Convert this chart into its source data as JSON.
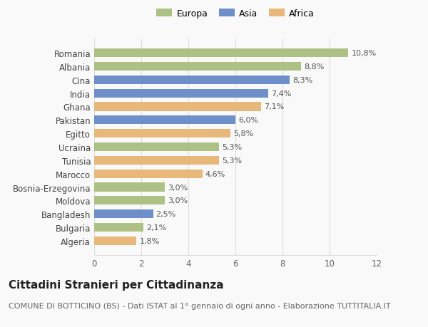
{
  "countries": [
    "Algeria",
    "Bulgaria",
    "Bangladesh",
    "Moldova",
    "Bosnia-Erzegovina",
    "Marocco",
    "Tunisia",
    "Ucraina",
    "Egitto",
    "Pakistan",
    "Ghana",
    "India",
    "Cina",
    "Albania",
    "Romania"
  ],
  "values": [
    1.8,
    2.1,
    2.5,
    3.0,
    3.0,
    4.6,
    5.3,
    5.3,
    5.8,
    6.0,
    7.1,
    7.4,
    8.3,
    8.8,
    10.8
  ],
  "continents": [
    "Africa",
    "Europa",
    "Asia",
    "Europa",
    "Europa",
    "Africa",
    "Africa",
    "Europa",
    "Africa",
    "Asia",
    "Africa",
    "Asia",
    "Asia",
    "Europa",
    "Europa"
  ],
  "labels": [
    "1,8%",
    "2,1%",
    "2,5%",
    "3,0%",
    "3,0%",
    "4,6%",
    "5,3%",
    "5,3%",
    "5,8%",
    "6,0%",
    "7,1%",
    "7,4%",
    "8,3%",
    "8,8%",
    "10,8%"
  ],
  "colors": {
    "Europa": "#aec185",
    "Asia": "#6e8fc9",
    "Africa": "#e8b87a"
  },
  "legend_labels": [
    "Europa",
    "Asia",
    "Africa"
  ],
  "legend_colors": [
    "#aec185",
    "#6e8fc9",
    "#e8b87a"
  ],
  "xlim": [
    0,
    12
  ],
  "xticks": [
    0,
    2,
    4,
    6,
    8,
    10,
    12
  ],
  "title": "Cittadini Stranieri per Cittadinanza",
  "subtitle": "COMUNE DI BOTTICINO (BS) - Dati ISTAT al 1° gennaio di ogni anno - Elaborazione TUTTITALIA.IT",
  "background_color": "#f9f9f9",
  "bar_height": 0.65,
  "title_fontsize": 11,
  "subtitle_fontsize": 8,
  "label_fontsize": 8,
  "tick_fontsize": 8.5,
  "ytick_fontsize": 8.5,
  "grid_color": "#dddddd"
}
